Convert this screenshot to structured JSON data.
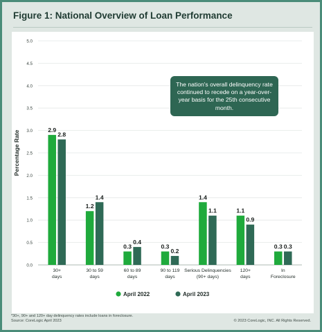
{
  "title": "Figure 1: National Overview of Loan Performance",
  "callout_text": "The nation's overall delinquency rate continued to recede on a year-over-year basis for the 25th consecutive month.",
  "footnote_line1": "*30+, 90+ and 120+ day delinquency rates include loans in foreclosure.",
  "footnote_line2": "Source: CoreLogic April 2023",
  "copyright": "© 2023 CoreLogic, INC. All Rights Reserved.",
  "colors": {
    "april_2022": "#1faa3c",
    "april_2023": "#2f6a56",
    "frame": "#4a8c79",
    "background": "#dfe7e3"
  },
  "chart_data": {
    "type": "bar",
    "title": "Figure 1: National Overview of Loan Performance",
    "xlabel": "",
    "ylabel": "Percentage Rate",
    "ylim": [
      0,
      5.0
    ],
    "yticks": [
      "0.0",
      "0.5",
      "1.0",
      "1.5",
      "2.0",
      "2.5",
      "3.0",
      "3.5",
      "4.0",
      "4.5",
      "5.0"
    ],
    "grid": true,
    "legend_position": "bottom",
    "categories": [
      [
        "30+",
        "days"
      ],
      [
        "30 to 59",
        "days"
      ],
      [
        "60 to 89",
        "days"
      ],
      [
        "90 to 119",
        "days"
      ],
      [
        "Serious Delinquencies",
        "(90+ days)"
      ],
      [
        "120+",
        "days"
      ],
      [
        "In",
        "Foreclosure"
      ]
    ],
    "series": [
      {
        "name": "April 2022",
        "color": "#1faa3c",
        "values": [
          2.9,
          1.2,
          0.3,
          0.3,
          1.4,
          1.1,
          0.3
        ]
      },
      {
        "name": "April 2023",
        "color": "#2f6a56",
        "values": [
          2.8,
          1.4,
          0.4,
          0.2,
          1.1,
          0.9,
          0.3
        ]
      }
    ]
  }
}
